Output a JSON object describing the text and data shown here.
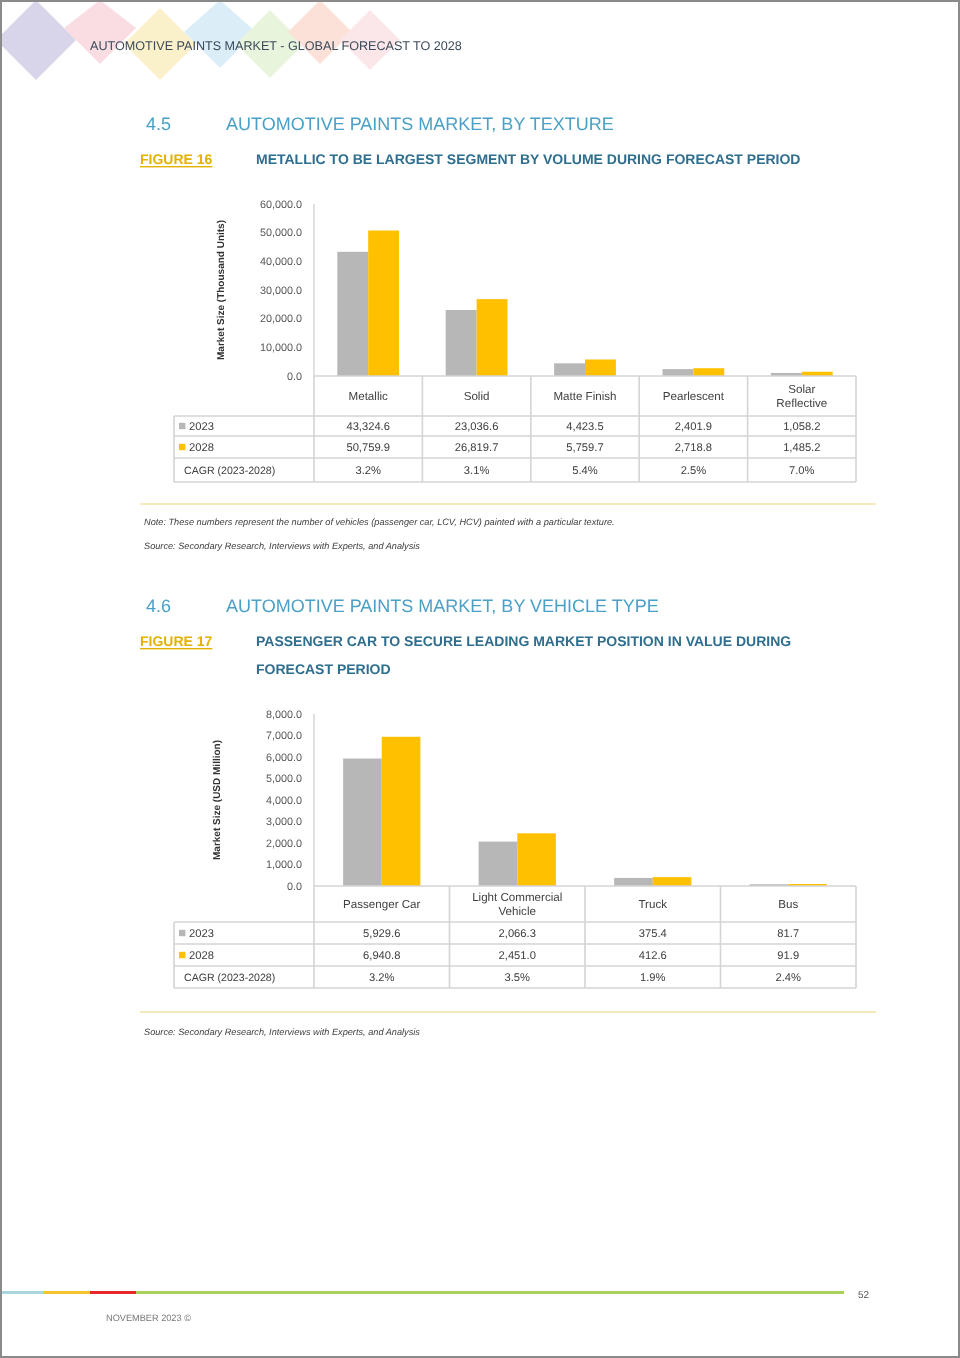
{
  "chart_data": [
    {
      "type": "bar",
      "title": "4.5 AUTOMOTIVE PAINTS MARKET, BY TEXTURE",
      "subtitle": "FIGURE 16 METALLIC TO BE LARGEST SEGMENT BY VOLUME DURING FORECAST PERIOD",
      "ylabel": "Market Size (Thousand Units)",
      "categories": [
        "Metallic",
        "Solid",
        "Matte Finish",
        "Pearlescent",
        "Solar Reflective"
      ],
      "series": [
        {
          "name": "2023",
          "color": "#b7b7b7",
          "values": [
            43324.6,
            23036.6,
            4423.5,
            2401.9,
            1058.2
          ],
          "value_labels": [
            "43,324.6",
            "23,036.6",
            "4,423.5",
            "2,401.9",
            "1,058.2"
          ]
        },
        {
          "name": "2028",
          "color": "#ffc000",
          "values": [
            50759.9,
            26819.7,
            5759.7,
            2718.8,
            1485.2
          ],
          "value_labels": [
            "50,759.9",
            "26,819.7",
            "5,759.7",
            "2,718.8",
            "1,485.2"
          ]
        }
      ],
      "ylim": [
        0,
        60000
      ],
      "yticks": [
        {
          "value": 0,
          "label": "0.0"
        },
        {
          "value": 10000,
          "label": "10,000.0"
        },
        {
          "value": 20000,
          "label": "20,000.0"
        },
        {
          "value": 30000,
          "label": "30,000.0"
        },
        {
          "value": 40000,
          "label": "40,000.0"
        },
        {
          "value": 50000,
          "label": "50,000.0"
        },
        {
          "value": 60000,
          "label": "60,000.0"
        }
      ],
      "legend": "bottom",
      "annotations": [
        "CAGR (2023-2028)",
        "3.2%",
        "3.1%",
        "5.4%",
        "2.5%",
        "7.0%",
        "Note: These numbers represent the number of vehicles (passenger car, LCV, HCV) painted with a particular texture.",
        "Source: Secondary Research, Interviews with Experts, and Analysis",
        "AUTOMOTIVE PAINTS MARKET - GLOBAL FORECAST TO 2028"
      ]
    },
    {
      "type": "bar",
      "title": "4.6 AUTOMOTIVE PAINTS MARKET, BY VEHICLE TYPE",
      "subtitle": "FIGURE 17 PASSENGER CAR TO SECURE LEADING MARKET POSITION IN VALUE DURING FORECAST PERIOD",
      "ylabel": "Market Size (USD Million)",
      "categories": [
        "Passenger Car",
        "Light Commercial Vehicle",
        "Truck",
        "Bus"
      ],
      "series": [
        {
          "name": "2023",
          "color": "#b7b7b7",
          "values": [
            5929.6,
            2066.3,
            375.4,
            81.7
          ],
          "value_labels": [
            "5,929.6",
            "2,066.3",
            "375.4",
            "81.7"
          ]
        },
        {
          "name": "2028",
          "color": "#ffc000",
          "values": [
            6940.8,
            2451.0,
            412.6,
            91.9
          ],
          "value_labels": [
            "6,940.8",
            "2,451.0",
            "412.6",
            "91.9"
          ]
        }
      ],
      "ylim": [
        0,
        8000
      ],
      "yticks": [
        {
          "value": 0,
          "label": "0.0"
        },
        {
          "value": 1000,
          "label": "1,000.0"
        },
        {
          "value": 2000,
          "label": "2,000.0"
        },
        {
          "value": 3000,
          "label": "3,000.0"
        },
        {
          "value": 4000,
          "label": "4,000.0"
        },
        {
          "value": 5000,
          "label": "5,000.0"
        },
        {
          "value": 6000,
          "label": "6,000.0"
        },
        {
          "value": 7000,
          "label": "7,000.0"
        },
        {
          "value": 8000,
          "label": "8,000.0"
        }
      ],
      "legend": "bottom",
      "annotations": [
        "CAGR (2023-2028)",
        "3.2%",
        "3.5%",
        "1.9%",
        "2.4%",
        "Source: Secondary Research, Interviews with Experts, and Analysis",
        "NOVEMBER 2023 ©",
        "52"
      ]
    }
  ]
}
